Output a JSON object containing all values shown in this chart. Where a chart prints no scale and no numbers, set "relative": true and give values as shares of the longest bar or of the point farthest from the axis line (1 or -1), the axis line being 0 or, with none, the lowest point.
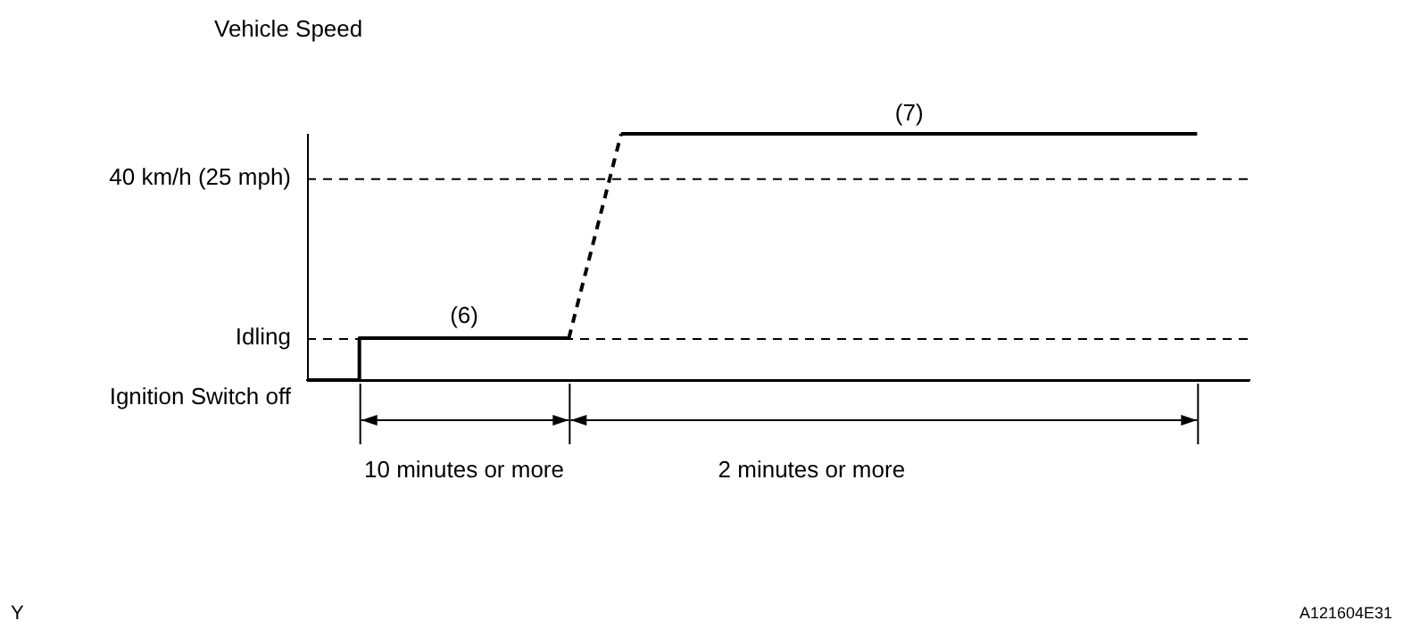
{
  "chart_data": {
    "type": "line",
    "ylabel": "Vehicle Speed",
    "relative": true,
    "categories": [
      null,
      null,
      null,
      null,
      null,
      null,
      null,
      null,
      null,
      null,
      null,
      null,
      null,
      null,
      null,
      null,
      null,
      null,
      null
    ],
    "series": [
      {
        "type": "step",
        "color": "#000000",
        "line_style": "solid",
        "values": [
          0,
          0.17,
          0.17,
          0.17,
          0.17,
          0.17,
          null,
          null,
          null,
          null,
          null,
          null,
          null,
          null,
          null,
          null,
          null,
          null,
          null
        ]
      },
      {
        "type": "line",
        "color": "#000000",
        "line_style": "dashed",
        "values": [
          null,
          null,
          null,
          null,
          null,
          0.17,
          1,
          null,
          null,
          null,
          null,
          null,
          null,
          null,
          null,
          null,
          null,
          null,
          null
        ]
      },
      {
        "type": "line",
        "color": "#000000",
        "line_style": "solid",
        "values": [
          null,
          null,
          null,
          null,
          null,
          null,
          1,
          1,
          1,
          1,
          1,
          1,
          1,
          1,
          1,
          1,
          1,
          1,
          null
        ]
      }
    ],
    "ref_lines": [
      {
        "axis": "y",
        "value": 0.82,
        "label": "40 km/h (25 mph)",
        "color": "#000000",
        "line_style": "dashed"
      },
      {
        "axis": "y",
        "value": 0.17,
        "label": "Idling",
        "color": "#000000",
        "line_style": "dashed"
      },
      {
        "axis": "y",
        "value": 0,
        "label": "Ignition Switch off",
        "color": "#000000",
        "line_style": "solid"
      }
    ],
    "annotations": [
      "(6)",
      "(7)",
      "10 minutes or more",
      "2 minutes or more",
      "Y",
      "A121604E31"
    ],
    "grid": false,
    "legend": false,
    "marker": "none"
  }
}
